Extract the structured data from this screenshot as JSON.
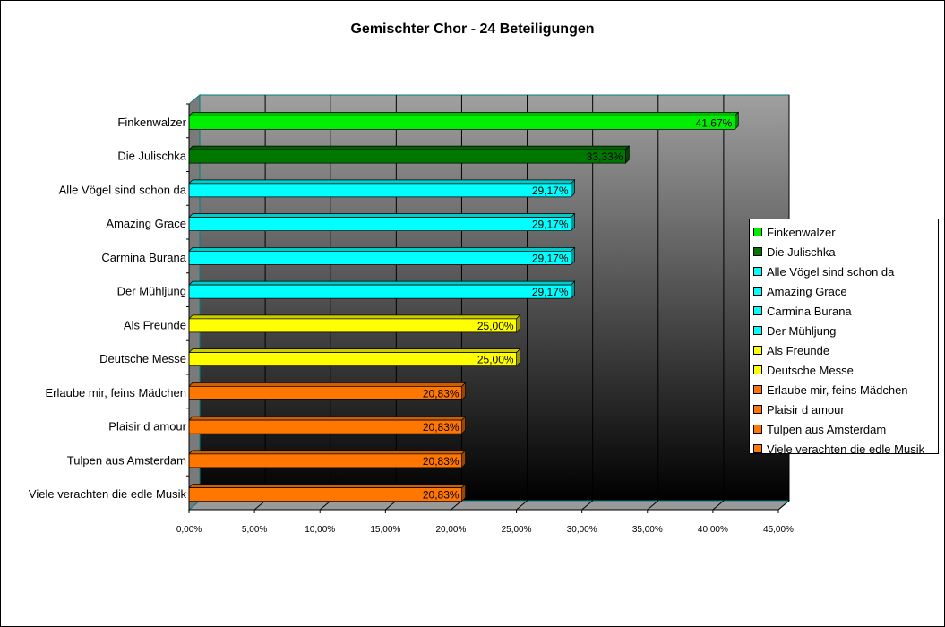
{
  "chart_data": {
    "type": "bar",
    "orientation": "horizontal",
    "title": "Gemischter Chor - 24 Beteiligungen",
    "xlabel": "",
    "ylabel": "",
    "xlim": [
      0,
      45
    ],
    "grid": true,
    "legend_position": "right",
    "x_ticks": [
      "0,00%",
      "5,00%",
      "10,00%",
      "15,00%",
      "20,00%",
      "25,00%",
      "30,00%",
      "35,00%",
      "40,00%",
      "45,00%"
    ],
    "categories": [
      "Finkenwalzer",
      "Die Julischka",
      "Alle Vögel sind schon da",
      "Amazing Grace",
      "Carmina Burana",
      "Der Mühljung",
      "Als Freunde",
      "Deutsche Messe",
      "Erlaube mir, feins Mädchen",
      "Plaisir d amour",
      "Tulpen aus Amsterdam",
      "Viele verachten die edle Musik"
    ],
    "values": [
      41.67,
      33.33,
      29.17,
      29.17,
      29.17,
      29.17,
      25.0,
      25.0,
      20.83,
      20.83,
      20.83,
      20.83
    ],
    "data_labels": [
      "41,67%",
      "33,33%",
      "29,17%",
      "29,17%",
      "29,17%",
      "29,17%",
      "25,00%",
      "25,00%",
      "20,83%",
      "20,83%",
      "20,83%",
      "20,83%"
    ],
    "colors": [
      "#00ee00",
      "#007700",
      "#00ffff",
      "#00ffff",
      "#00ffff",
      "#00ffff",
      "#ffff00",
      "#ffff00",
      "#ff7700",
      "#ff7700",
      "#ff7700",
      "#ff7700"
    ]
  }
}
